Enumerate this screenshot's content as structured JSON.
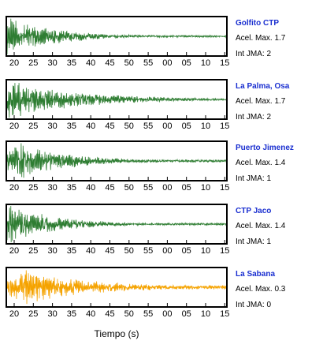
{
  "chart_data": {
    "type": "line",
    "xlabel": "Tiempo (s)",
    "x_ticks": [
      "20",
      "25",
      "30",
      "35",
      "40",
      "45",
      "50",
      "55",
      "00",
      "05",
      "10",
      "15"
    ],
    "panels": [
      {
        "station": "Golfito CTP",
        "acel": "Acel. Max. 1.7",
        "jma": "Int JMA: 2",
        "color": "#2e7d32"
      },
      {
        "station": "La Palma, Osa",
        "acel": "Acel. Max. 1.7",
        "jma": "Int JMA: 2",
        "color": "#2e7d32"
      },
      {
        "station": "Puerto Jimenez",
        "acel": "Acel. Max. 1.4",
        "jma": "Int JMA: 1",
        "color": "#2e7d32"
      },
      {
        "station": "CTP Jaco",
        "acel": "Acel. Max. 1.4",
        "jma": "Int JMA: 1",
        "color": "#2e7d32"
      },
      {
        "station": "La Sabana",
        "acel": "Acel. Max. 0.3",
        "jma": "Int JMA: 0",
        "color": "#f5a300"
      }
    ]
  }
}
